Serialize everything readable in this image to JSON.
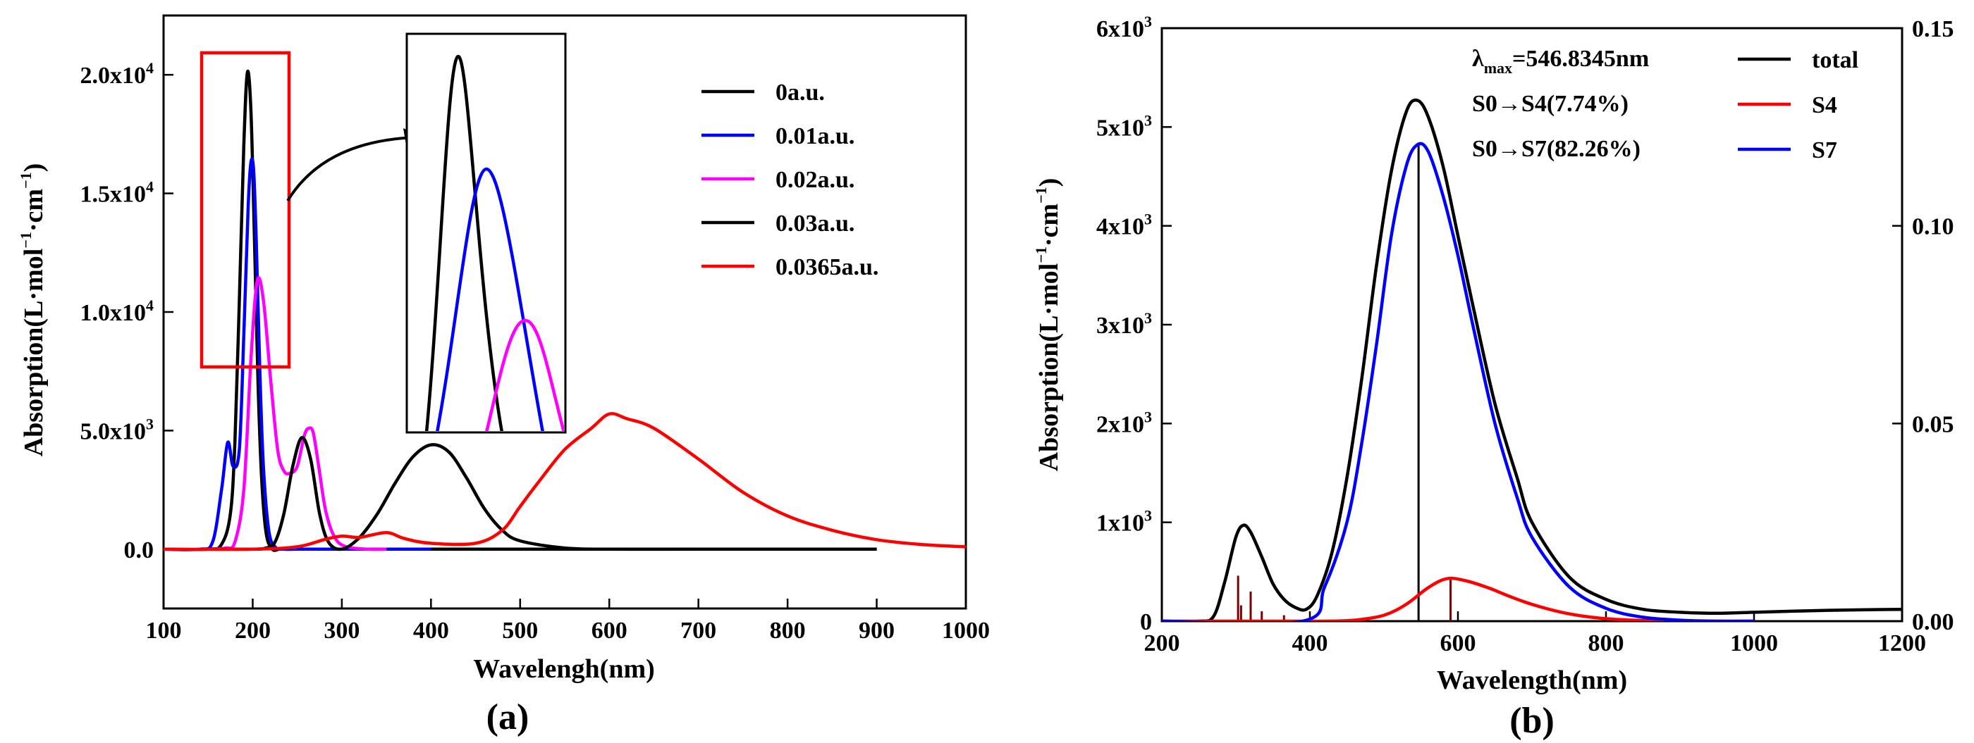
{
  "chart_data": [
    {
      "panel_label": "(a)",
      "type": "line",
      "xlabel": "Wavelengh(nm)",
      "ylabel": "Absorption(L·mol",
      "ylabel_parts": [
        "Absorption(L·mol",
        "−1",
        "·cm",
        "−1",
        ")"
      ],
      "xlim": [
        100,
        1000
      ],
      "ylim": [
        -2500,
        22500
      ],
      "x_ticks": [
        100,
        200,
        300,
        400,
        500,
        600,
        700,
        800,
        900,
        1000
      ],
      "x_tick_labels": [
        "100",
        "200",
        "300",
        "400",
        "500",
        "600",
        "700",
        "800",
        "900",
        "1000"
      ],
      "y_ticks": [
        0,
        5000,
        10000,
        15000,
        20000
      ],
      "y_tick_labels": [
        {
          "base": "0.0",
          "exp": ""
        },
        {
          "base": "5.0x10",
          "exp": "3"
        },
        {
          "base": "1.0x10",
          "exp": "4"
        },
        {
          "base": "1.5x10",
          "exp": "4"
        },
        {
          "base": "2.0x10",
          "exp": "4"
        }
      ],
      "legend_position": "top-right",
      "series": [
        {
          "name": "0a.u.",
          "color": "#000000",
          "x": [
            100,
            150,
            165,
            175,
            180,
            185,
            190,
            194,
            198,
            202,
            206,
            210,
            215,
            222,
            230,
            240,
            260,
            300,
            400,
            500,
            600,
            700,
            800,
            900
          ],
          "y": [
            0,
            0,
            200,
            1500,
            4500,
            10500,
            17000,
            20100,
            18500,
            13000,
            7000,
            3000,
            700,
            0,
            0,
            0,
            0,
            0,
            0,
            0,
            0,
            0,
            0,
            0
          ]
        },
        {
          "name": "0.01a.u.",
          "color": "#0000ff",
          "x": [
            100,
            140,
            155,
            165,
            172,
            178,
            185,
            190,
            195,
            198,
            201,
            204,
            208,
            212,
            218,
            225,
            235,
            250,
            300,
            400
          ],
          "y": [
            0,
            0,
            300,
            2500,
            4500,
            3500,
            4200,
            9000,
            14500,
            16300,
            16000,
            13000,
            7500,
            3500,
            800,
            100,
            0,
            0,
            0,
            0
          ]
        },
        {
          "name": "0.02a.u.",
          "color": "#ff00ff",
          "x": [
            150,
            170,
            180,
            190,
            198,
            205,
            212,
            220,
            228,
            235,
            242,
            250,
            258,
            263,
            268,
            274,
            282,
            292,
            305,
            330,
            350
          ],
          "y": [
            0,
            50,
            300,
            2500,
            8000,
            11300,
            10500,
            7200,
            4200,
            3300,
            3200,
            3500,
            4800,
            5100,
            4900,
            3500,
            1600,
            500,
            100,
            0,
            0
          ]
        },
        {
          "name": "0.03a.u.",
          "color": "#000000",
          "x": [
            150,
            200,
            215,
            225,
            235,
            245,
            255,
            265,
            275,
            285,
            300,
            320,
            340,
            360,
            380,
            400,
            420,
            440,
            460,
            480,
            500,
            550,
            600,
            700,
            800,
            900
          ],
          "y": [
            0,
            0,
            50,
            300,
            1500,
            3500,
            4700,
            3800,
            1500,
            300,
            0,
            500,
            1500,
            2800,
            3900,
            4400,
            4100,
            3000,
            1700,
            800,
            350,
            50,
            0,
            0,
            0,
            0
          ]
        },
        {
          "name": "0.0365a.u.",
          "color": "#ff0000",
          "x": [
            100,
            200,
            250,
            280,
            300,
            320,
            350,
            370,
            400,
            450,
            480,
            500,
            520,
            550,
            580,
            600,
            620,
            650,
            700,
            750,
            800,
            850,
            900,
            950,
            1000
          ],
          "y": [
            0,
            0,
            100,
            400,
            550,
            500,
            700,
            450,
            250,
            250,
            800,
            1800,
            2800,
            4200,
            5100,
            5700,
            5500,
            5100,
            3800,
            2400,
            1400,
            800,
            400,
            200,
            100
          ]
        }
      ],
      "annotations": {
        "inset_note": "magnified view of the 180–240 nm peak region",
        "highlight_box_xrange": [
          175,
          240
        ],
        "highlight_box_yrange": [
          7800,
          20800
        ]
      }
    },
    {
      "panel_label": "(b)",
      "type": "line",
      "xlabel": "Wavelength(nm)",
      "ylabel": "Absorption(L·mol",
      "ylabel_parts": [
        "Absorption(L·mol",
        "−1",
        "·cm",
        "−1",
        ")"
      ],
      "xlim": [
        200,
        1200
      ],
      "ylim": [
        0,
        6000
      ],
      "y2lim": [
        0,
        0.15
      ],
      "x_ticks": [
        200,
        400,
        600,
        800,
        1000,
        1200
      ],
      "x_tick_labels": [
        "200",
        "400",
        "600",
        "800",
        "1000",
        "1200"
      ],
      "y_ticks": [
        0,
        1000,
        2000,
        3000,
        4000,
        5000,
        6000
      ],
      "y_tick_labels": [
        {
          "base": "0",
          "exp": ""
        },
        {
          "base": "1x10",
          "exp": "3"
        },
        {
          "base": "2x10",
          "exp": "3"
        },
        {
          "base": "3x10",
          "exp": "3"
        },
        {
          "base": "4x10",
          "exp": "3"
        },
        {
          "base": "5x10",
          "exp": "3"
        },
        {
          "base": "6x10",
          "exp": "3"
        }
      ],
      "y2_ticks": [
        0,
        0.05,
        0.1,
        0.15
      ],
      "y2_tick_labels": [
        "0.00",
        "0.05",
        "0.10",
        "0.15"
      ],
      "legend_position": "top-right",
      "annotation_lines": [
        {
          "prefix": "λ",
          "sub": "max",
          "rest": "=546.8345nm"
        },
        {
          "prefix": "S0→S4(7.74%)",
          "sub": "",
          "rest": ""
        },
        {
          "prefix": "S0→S7(82.26%)",
          "sub": "",
          "rest": ""
        }
      ],
      "series": [
        {
          "name": "total",
          "color": "#000000",
          "x": [
            200,
            250,
            270,
            285,
            300,
            310,
            320,
            335,
            350,
            365,
            380,
            395,
            410,
            430,
            450,
            470,
            490,
            510,
            530,
            545,
            560,
            580,
            600,
            620,
            650,
            680,
            700,
            750,
            800,
            850,
            900,
            950,
            1000,
            1100,
            1200
          ],
          "y": [
            0,
            0,
            50,
            400,
            850,
            970,
            900,
            650,
            380,
            220,
            140,
            120,
            260,
            700,
            1450,
            2450,
            3600,
            4550,
            5150,
            5270,
            5100,
            4600,
            3900,
            3200,
            2200,
            1450,
            1000,
            450,
            220,
            120,
            90,
            80,
            90,
            110,
            120
          ]
        },
        {
          "name": "S4",
          "color": "#ff0000",
          "x": [
            200,
            380,
            420,
            460,
            500,
            530,
            560,
            585,
            610,
            640,
            670,
            700,
            740,
            780,
            820,
            860,
            900,
            1000
          ],
          "y": [
            0,
            0,
            0,
            10,
            60,
            170,
            340,
            430,
            410,
            340,
            250,
            170,
            90,
            40,
            15,
            5,
            0,
            0
          ]
        },
        {
          "name": "S7",
          "color": "#0000ff",
          "x": [
            200,
            390,
            420,
            450,
            470,
            490,
            510,
            530,
            545,
            560,
            580,
            600,
            620,
            650,
            680,
            700,
            750,
            800,
            850,
            900,
            950,
            1000
          ],
          "y": [
            0,
            0,
            350,
            1000,
            1800,
            2800,
            3900,
            4600,
            4820,
            4750,
            4300,
            3700,
            3000,
            2000,
            1250,
            850,
            350,
            130,
            40,
            10,
            0,
            0
          ]
        }
      ],
      "stick_spectrum": {
        "color_dark": "#7a0000",
        "x": [
          303,
          307,
          320,
          335,
          365,
          546.8,
          590
        ],
        "oscillator_strength": [
          0.0115,
          0.004,
          0.0075,
          0.0025,
          0.0015,
          0.121,
          0.011
        ]
      }
    }
  ]
}
